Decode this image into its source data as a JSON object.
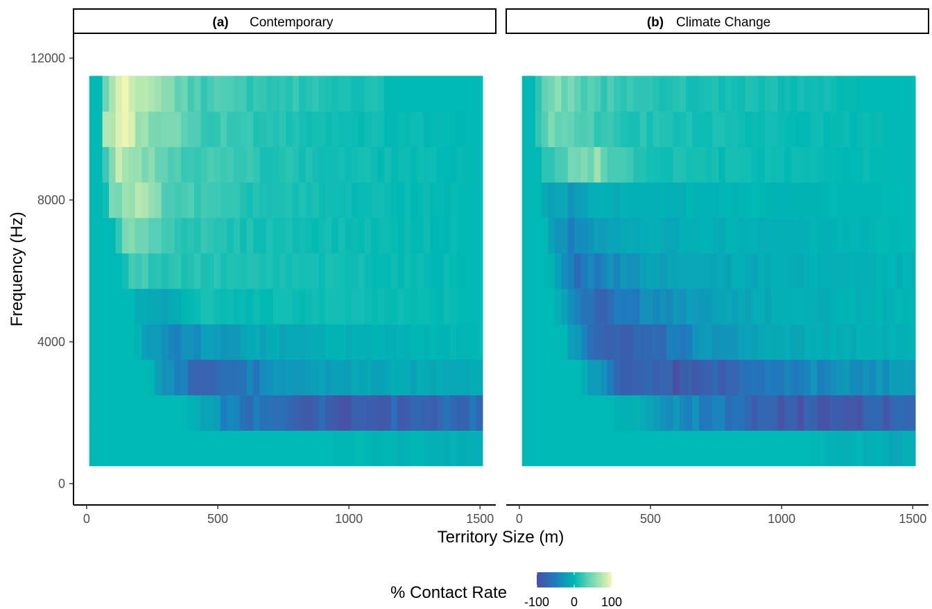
{
  "chart_data": {
    "type": "heatmap",
    "xlabel": "Territory Size (m)",
    "ylabel": "Frequency (Hz)",
    "xlim": [
      -50,
      1560
    ],
    "ylim": [
      -600,
      12700
    ],
    "x_ticks": [
      0,
      500,
      1000,
      1500
    ],
    "x_tick_labels": [
      "0",
      "500",
      "1000",
      "1500"
    ],
    "y_ticks": [
      0,
      4000,
      8000,
      12000
    ],
    "y_tick_labels": [
      "0",
      "4000",
      "8000",
      "12000"
    ],
    "frequency_bands_hz": [
      1000,
      2000,
      3000,
      4000,
      5000,
      6000,
      7000,
      8000,
      9000,
      10000,
      11000
    ],
    "territory_range_m": [
      10,
      1510
    ],
    "territory_step_m": 25,
    "grid": false,
    "legend": {
      "title": "% Contact Rate",
      "position": "bottom",
      "range": [
        -100,
        100
      ],
      "tick_labels": [
        "-100",
        "0",
        "100"
      ],
      "tick_values": [
        -100,
        0,
        100
      ],
      "colors": [
        "#4b4fa3",
        "#1e7bbe",
        "#00b8b4",
        "#66d3b4",
        "#a9e4b0",
        "#f2f6b3"
      ]
    },
    "panels": [
      {
        "tag": "(a)",
        "title": "Contemporary",
        "profiles": [
          {
            "freq": 1000,
            "points": [
              [
                10,
                0
              ],
              [
                900,
                0
              ],
              [
                1100,
                -2
              ],
              [
                1300,
                -6
              ],
              [
                1510,
                -8
              ]
            ]
          },
          {
            "freq": 2000,
            "points": [
              [
                10,
                0
              ],
              [
                380,
                0
              ],
              [
                480,
                -25
              ],
              [
                580,
                -55
              ],
              [
                760,
                -72
              ],
              [
                950,
                -82
              ],
              [
                1200,
                -75
              ],
              [
                1510,
                -66
              ]
            ]
          },
          {
            "freq": 3000,
            "points": [
              [
                10,
                0
              ],
              [
                240,
                0
              ],
              [
                330,
                -45
              ],
              [
                420,
                -65
              ],
              [
                560,
                -62
              ],
              [
                700,
                -40
              ],
              [
                850,
                -22
              ],
              [
                1100,
                -16
              ],
              [
                1510,
                -8
              ]
            ]
          },
          {
            "freq": 4000,
            "points": [
              [
                10,
                0
              ],
              [
                180,
                0
              ],
              [
                260,
                -30
              ],
              [
                340,
                -45
              ],
              [
                440,
                -28
              ],
              [
                620,
                -18
              ],
              [
                900,
                -8
              ],
              [
                1200,
                -4
              ],
              [
                1510,
                0
              ]
            ]
          },
          {
            "freq": 5000,
            "points": [
              [
                10,
                0
              ],
              [
                150,
                0
              ],
              [
                220,
                -12
              ],
              [
                300,
                -18
              ],
              [
                420,
                8
              ],
              [
                600,
                2
              ],
              [
                900,
                6
              ],
              [
                1510,
                0
              ]
            ]
          },
          {
            "freq": 6000,
            "points": [
              [
                10,
                0
              ],
              [
                130,
                0
              ],
              [
                180,
                30
              ],
              [
                260,
                18
              ],
              [
                420,
                15
              ],
              [
                600,
                10
              ],
              [
                1000,
                6
              ],
              [
                1510,
                0
              ]
            ]
          },
          {
            "freq": 7000,
            "points": [
              [
                10,
                0
              ],
              [
                100,
                0
              ],
              [
                140,
                35
              ],
              [
                200,
                55
              ],
              [
                300,
                25
              ],
              [
                500,
                12
              ],
              [
                900,
                6
              ],
              [
                1510,
                0
              ]
            ]
          },
          {
            "freq": 8000,
            "points": [
              [
                10,
                0
              ],
              [
                70,
                0
              ],
              [
                100,
                50
              ],
              [
                160,
                78
              ],
              [
                240,
                55
              ],
              [
                340,
                30
              ],
              [
                550,
                15
              ],
              [
                900,
                6
              ],
              [
                1510,
                0
              ]
            ]
          },
          {
            "freq": 9000,
            "points": [
              [
                10,
                0
              ],
              [
                60,
                0
              ],
              [
                90,
                65
              ],
              [
                140,
                85
              ],
              [
                220,
                55
              ],
              [
                320,
                35
              ],
              [
                520,
                22
              ],
              [
                900,
                8
              ],
              [
                1510,
                0
              ]
            ]
          },
          {
            "freq": 10000,
            "points": [
              [
                10,
                0
              ],
              [
                50,
                0
              ],
              [
                70,
                60
              ],
              [
                130,
                92
              ],
              [
                220,
                60
              ],
              [
                400,
                30
              ],
              [
                600,
                18
              ],
              [
                1000,
                6
              ],
              [
                1510,
                0
              ]
            ]
          },
          {
            "freq": 11000,
            "points": [
              [
                10,
                0
              ],
              [
                50,
                0
              ],
              [
                80,
                70
              ],
              [
                140,
                100
              ],
              [
                230,
                62
              ],
              [
                420,
                30
              ],
              [
                650,
                20
              ],
              [
                1100,
                10
              ],
              [
                1180,
                0
              ],
              [
                1510,
                0
              ]
            ]
          }
        ]
      },
      {
        "tag": "(b)",
        "title": "Climate Change",
        "profiles": [
          {
            "freq": 1000,
            "points": [
              [
                10,
                0
              ],
              [
                1100,
                0
              ],
              [
                1300,
                -6
              ],
              [
                1510,
                -12
              ]
            ]
          },
          {
            "freq": 2000,
            "points": [
              [
                10,
                0
              ],
              [
                360,
                0
              ],
              [
                460,
                -12
              ],
              [
                600,
                -30
              ],
              [
                760,
                -50
              ],
              [
                900,
                -78
              ],
              [
                1100,
                -88
              ],
              [
                1300,
                -85
              ],
              [
                1510,
                -80
              ]
            ]
          },
          {
            "freq": 3000,
            "points": [
              [
                10,
                0
              ],
              [
                230,
                0
              ],
              [
                320,
                -40
              ],
              [
                420,
                -75
              ],
              [
                600,
                -92
              ],
              [
                760,
                -80
              ],
              [
                900,
                -58
              ],
              [
                1100,
                -40
              ],
              [
                1300,
                -30
              ],
              [
                1510,
                -25
              ]
            ]
          },
          {
            "freq": 4000,
            "points": [
              [
                10,
                0
              ],
              [
                170,
                0
              ],
              [
                260,
                -55
              ],
              [
                340,
                -90
              ],
              [
                500,
                -70
              ],
              [
                650,
                -38
              ],
              [
                900,
                -18
              ],
              [
                1200,
                -10
              ],
              [
                1510,
                -4
              ]
            ]
          },
          {
            "freq": 5000,
            "points": [
              [
                10,
                0
              ],
              [
                140,
                0
              ],
              [
                220,
                -55
              ],
              [
                300,
                -78
              ],
              [
                420,
                -48
              ],
              [
                600,
                -28
              ],
              [
                900,
                -12
              ],
              [
                1200,
                -6
              ],
              [
                1510,
                -2
              ]
            ]
          },
          {
            "freq": 6000,
            "points": [
              [
                10,
                0
              ],
              [
                120,
                0
              ],
              [
                180,
                -35
              ],
              [
                230,
                -65
              ],
              [
                330,
                -42
              ],
              [
                500,
                -22
              ],
              [
                800,
                -12
              ],
              [
                1510,
                -4
              ]
            ]
          },
          {
            "freq": 7000,
            "points": [
              [
                10,
                0
              ],
              [
                100,
                0
              ],
              [
                130,
                -25
              ],
              [
                200,
                -42
              ],
              [
                300,
                -22
              ],
              [
                500,
                -12
              ],
              [
                900,
                -6
              ],
              [
                1510,
                0
              ]
            ]
          },
          {
            "freq": 8000,
            "points": [
              [
                10,
                0
              ],
              [
                80,
                0
              ],
              [
                110,
                -12
              ],
              [
                200,
                -22
              ],
              [
                300,
                -8
              ],
              [
                500,
                -6
              ],
              [
                900,
                -2
              ],
              [
                1510,
                0
              ]
            ]
          },
          {
            "freq": 9000,
            "points": [
              [
                10,
                0
              ],
              [
                70,
                0
              ],
              [
                100,
                18
              ],
              [
                200,
                40
              ],
              [
                300,
                55
              ],
              [
                360,
                25
              ],
              [
                500,
                10
              ],
              [
                900,
                4
              ],
              [
                1510,
                0
              ]
            ]
          },
          {
            "freq": 10000,
            "points": [
              [
                10,
                0
              ],
              [
                60,
                0
              ],
              [
                90,
                40
              ],
              [
                120,
                62
              ],
              [
                200,
                35
              ],
              [
                380,
                18
              ],
              [
                600,
                10
              ],
              [
                1000,
                4
              ],
              [
                1510,
                0
              ]
            ]
          },
          {
            "freq": 11000,
            "points": [
              [
                10,
                0
              ],
              [
                60,
                0
              ],
              [
                80,
                38
              ],
              [
                150,
                48
              ],
              [
                250,
                32
              ],
              [
                400,
                20
              ],
              [
                700,
                10
              ],
              [
                1200,
                6
              ],
              [
                1300,
                0
              ],
              [
                1510,
                0
              ]
            ]
          }
        ]
      }
    ]
  }
}
